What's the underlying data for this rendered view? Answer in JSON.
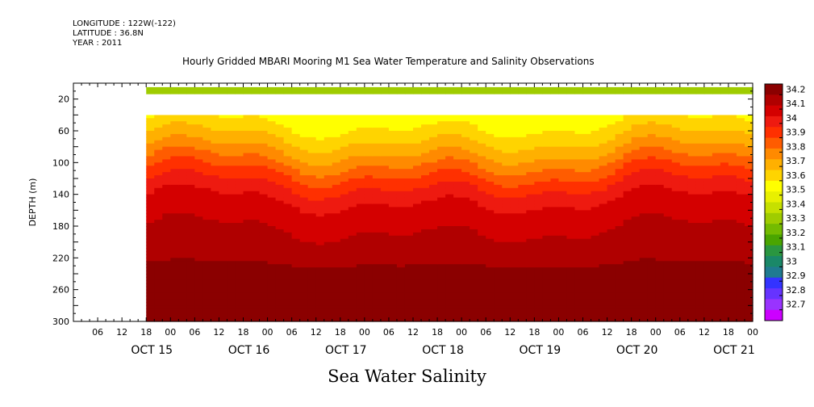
{
  "header": {
    "longitude": "LONGITUDE : 122W(-122)",
    "latitude": "LATITUDE : 36.8N",
    "year": "YEAR : 2011",
    "title": "Hourly Gridded MBARI Mooring M1 Sea Water Temperature and Salinity Observations"
  },
  "footer": {
    "variable_title": "Sea Water Salinity"
  },
  "chart_data": {
    "type": "heatmap",
    "title": "Hourly Gridded MBARI Mooring M1 Sea Water Temperature and Salinity Observations",
    "subtitle": "Sea Water Salinity",
    "ylabel": "DEPTH (m)",
    "y_inverted": true,
    "ylim": [
      300,
      0
    ],
    "y_ticks": [
      20,
      60,
      100,
      140,
      180,
      220,
      260,
      300
    ],
    "x_hour_ticks": [
      "06",
      "12",
      "18",
      "00",
      "06",
      "12",
      "18",
      "00",
      "06",
      "12",
      "18",
      "00",
      "06",
      "12",
      "18",
      "00",
      "06",
      "12",
      "18",
      "00",
      "06",
      "12",
      "18",
      "00",
      "06",
      "12",
      "18",
      "00"
    ],
    "x_day_labels": [
      "OCT 15",
      "OCT 16",
      "OCT 17",
      "OCT 18",
      "OCT 19",
      "OCT 20",
      "OCT 21"
    ],
    "x_hour_start": -18,
    "x_hour_end": 150,
    "data_start_hour": 0,
    "no_data_depth_band": [
      14,
      40
    ],
    "colorbar": {
      "levels": [
        34.2,
        34.1,
        34,
        33.9,
        33.8,
        33.7,
        33.6,
        33.5,
        33.4,
        33.3,
        33.2,
        33.1,
        33,
        32.9,
        32.8,
        32.7
      ],
      "colors": [
        "#8b0000",
        "#b00000",
        "#d40000",
        "#ee1a10",
        "#ff3000",
        "#ff5c00",
        "#ff8a00",
        "#ffb000",
        "#ffd400",
        "#ffff00",
        "#e8f000",
        "#c6e000",
        "#9fcc00",
        "#74bb00",
        "#4aa500",
        "#2a9640",
        "#1a8868",
        "#1f7a90",
        "#3333ff",
        "#6633ff",
        "#9933ff",
        "#cc00ff"
      ]
    },
    "depth_profile": [
      {
        "depth": 40,
        "value": 33.55
      },
      {
        "depth": 60,
        "value": 33.62
      },
      {
        "depth": 80,
        "value": 33.7
      },
      {
        "depth": 100,
        "value": 33.8
      },
      {
        "depth": 120,
        "value": 33.9
      },
      {
        "depth": 140,
        "value": 33.98
      },
      {
        "depth": 160,
        "value": 34.03
      },
      {
        "depth": 180,
        "value": 34.06
      },
      {
        "depth": 200,
        "value": 34.09
      },
      {
        "depth": 220,
        "value": 34.12
      },
      {
        "depth": 240,
        "value": 34.16
      },
      {
        "depth": 260,
        "value": 34.2
      },
      {
        "depth": 280,
        "value": 34.19
      },
      {
        "depth": 300,
        "value": 34.17
      }
    ],
    "surface_value": 33.35,
    "grid": false
  }
}
